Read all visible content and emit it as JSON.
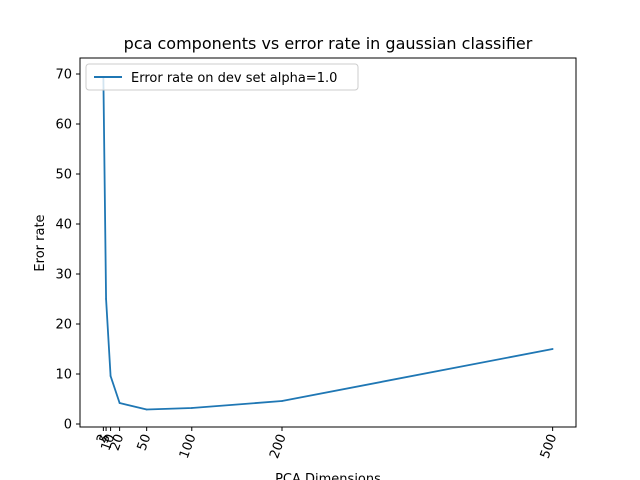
{
  "chart_data": {
    "type": "line",
    "title": "pca components vs error rate in gaussian classifier",
    "xlabel": "PCA Dimensions",
    "ylabel": "Eror rate",
    "x": [
      2,
      5,
      10,
      20,
      50,
      100,
      200,
      500
    ],
    "x_tick_labels": [
      "2",
      "5",
      "10",
      "20",
      "50",
      "100",
      "200",
      "500"
    ],
    "y_ticks": [
      0,
      10,
      20,
      30,
      40,
      50,
      60,
      70
    ],
    "xlim": [
      -23.9,
      525.9
    ],
    "ylim": [
      -0.6,
      73.2
    ],
    "grid": false,
    "legend_position": "top-left",
    "series": [
      {
        "name": "Error rate on dev set alpha=1.0",
        "color": "#1f77b4",
        "values": [
          69.4,
          25.0,
          9.6,
          4.2,
          2.9,
          3.2,
          4.6,
          15.0
        ]
      }
    ]
  }
}
